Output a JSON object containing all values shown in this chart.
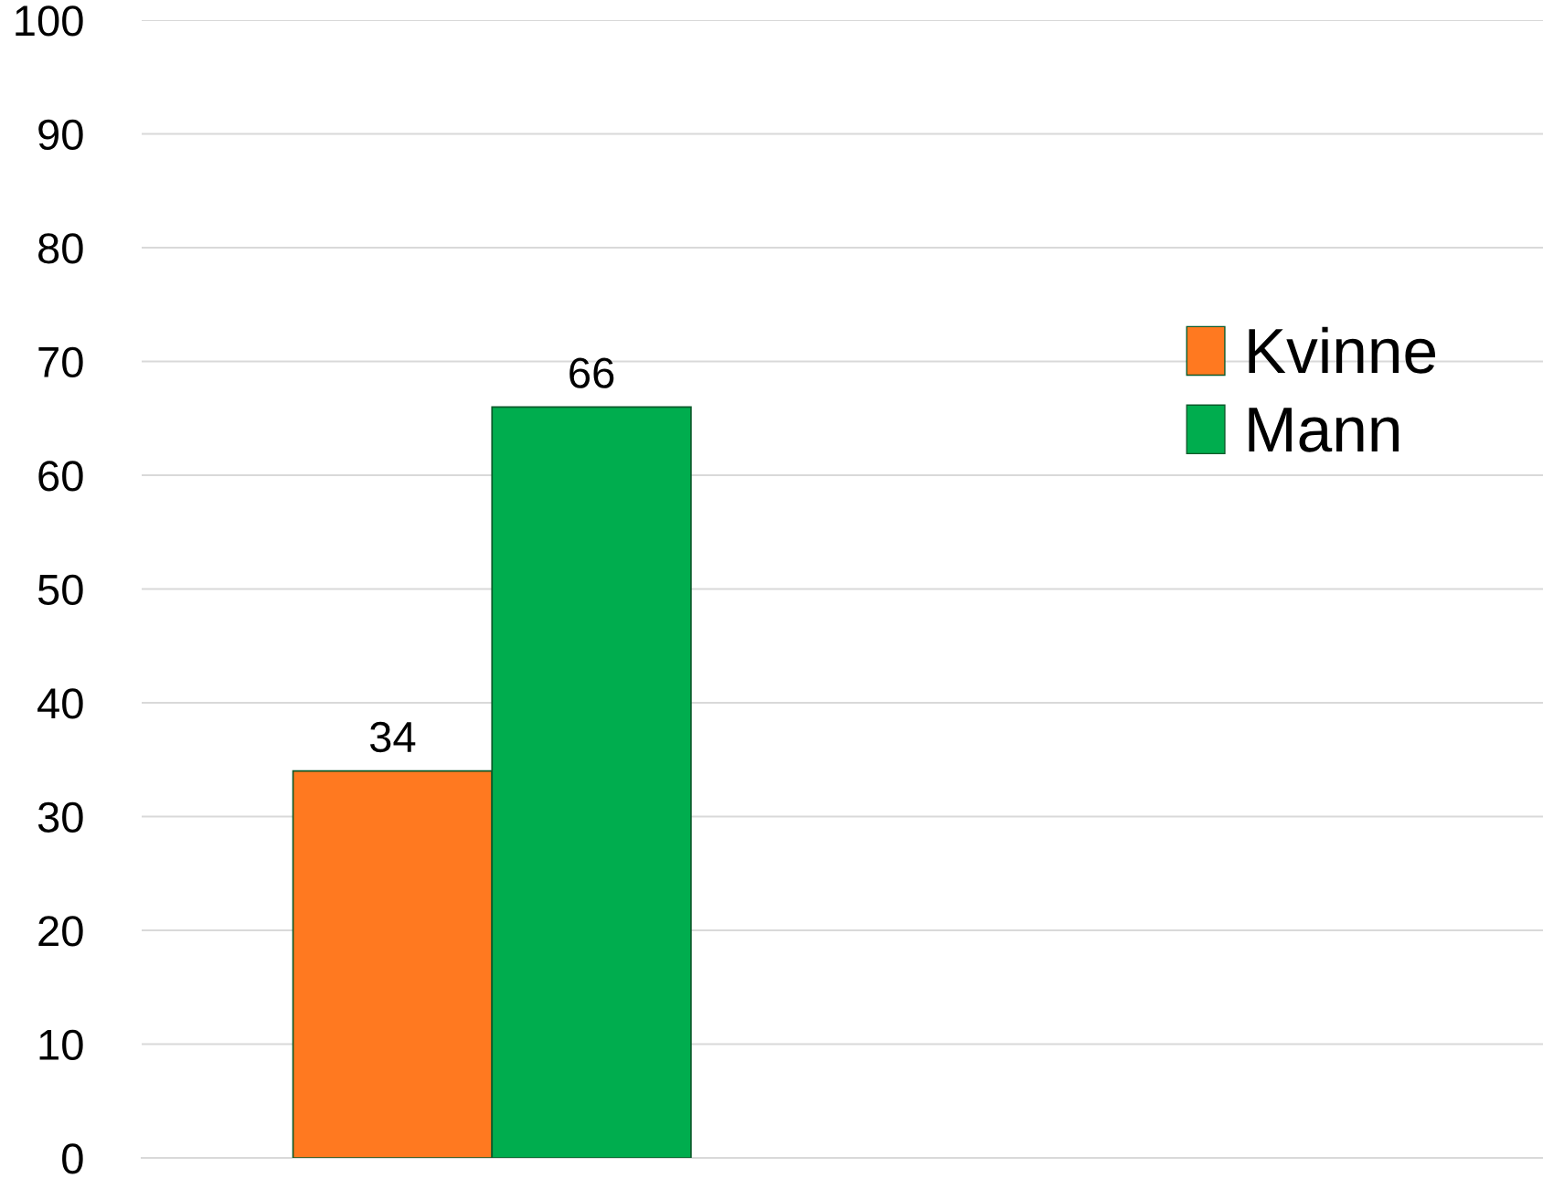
{
  "chart_data": {
    "type": "bar",
    "categories": [
      null
    ],
    "series": [
      {
        "name": "Kvinne",
        "color": "#ff7920",
        "values": [
          34
        ]
      },
      {
        "name": "Mann",
        "color": "#00ad4e",
        "values": [
          66
        ]
      }
    ],
    "ylim": [
      0,
      100
    ],
    "yticks": [
      0,
      10,
      20,
      30,
      40,
      50,
      60,
      70,
      80,
      90,
      100
    ],
    "grid": "y",
    "legend": "right",
    "data_labels": true
  }
}
